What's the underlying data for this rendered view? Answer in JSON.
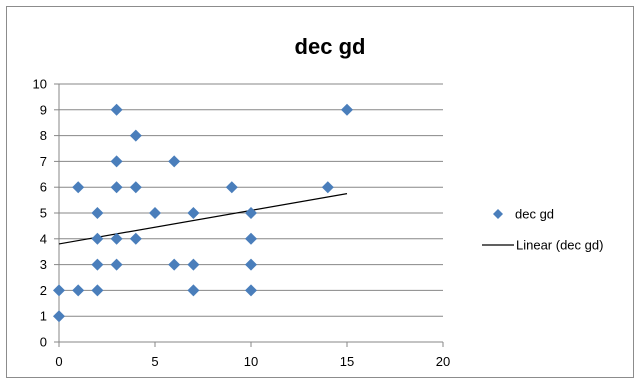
{
  "chart_data": {
    "type": "scatter",
    "title": "dec gd",
    "xlabel": "",
    "ylabel": "",
    "xlim": [
      0,
      20
    ],
    "ylim": [
      0,
      10
    ],
    "x_ticks": [
      0,
      5,
      10,
      15,
      20
    ],
    "y_ticks": [
      0,
      1,
      2,
      3,
      4,
      5,
      6,
      7,
      8,
      9,
      10
    ],
    "grid": "horizontal",
    "legend_position": "right",
    "series": [
      {
        "name": "dec gd",
        "marker": "diamond",
        "color": "#4a7ebb",
        "points": [
          [
            0,
            1
          ],
          [
            0,
            2
          ],
          [
            1,
            2
          ],
          [
            1,
            6
          ],
          [
            2,
            2
          ],
          [
            2,
            3
          ],
          [
            2,
            4
          ],
          [
            2,
            5
          ],
          [
            3,
            3
          ],
          [
            3,
            4
          ],
          [
            3,
            6
          ],
          [
            3,
            7
          ],
          [
            3,
            9
          ],
          [
            4,
            4
          ],
          [
            4,
            6
          ],
          [
            4,
            8
          ],
          [
            5,
            5
          ],
          [
            6,
            3
          ],
          [
            6,
            7
          ],
          [
            7,
            2
          ],
          [
            7,
            3
          ],
          [
            7,
            5
          ],
          [
            9,
            6
          ],
          [
            10,
            2
          ],
          [
            10,
            3
          ],
          [
            10,
            4
          ],
          [
            10,
            5
          ],
          [
            14,
            6
          ],
          [
            15,
            9
          ]
        ]
      }
    ],
    "trendline": {
      "name": "Linear (dec gd)",
      "color": "#000000",
      "x_start": 0,
      "y_start": 3.8,
      "x_end": 15,
      "y_end": 5.75
    }
  }
}
